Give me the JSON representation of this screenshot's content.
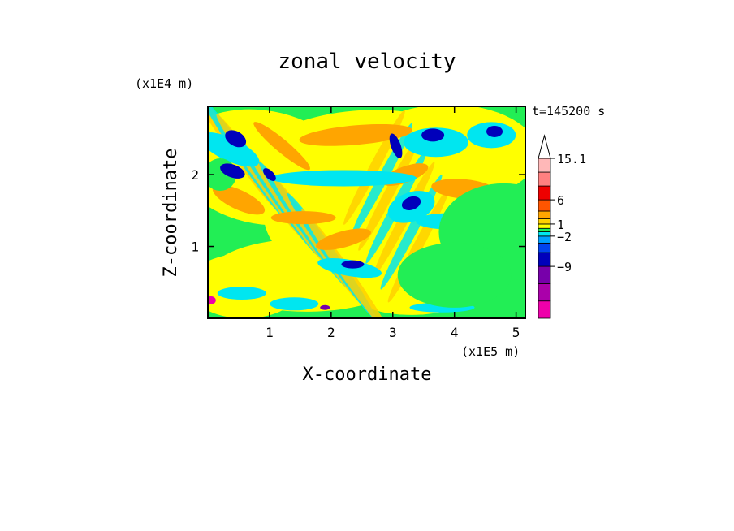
{
  "chart_data": {
    "type": "heatmap",
    "title": "zonal velocity",
    "xlabel": "X-coordinate",
    "ylabel": "Z-coordinate",
    "x_unit": "(x1E5 m)",
    "y_unit": "(x1E4 m)",
    "time_label": "t=145200 s",
    "xlim": [
      0,
      5.15
    ],
    "ylim": [
      0,
      2.95
    ],
    "x_ticks": [
      1,
      2,
      3,
      4,
      5
    ],
    "y_ticks": [
      1,
      2
    ],
    "colorbar": {
      "levels": [
        -15,
        -12,
        -9,
        -6,
        -3,
        -2,
        -1,
        0,
        1,
        2,
        3,
        6,
        9,
        12,
        15.1
      ],
      "labels": [
        {
          "value": 15.1,
          "text": "15.1"
        },
        {
          "value": 6,
          "text": "6"
        },
        {
          "value": 1,
          "text": "1"
        },
        {
          "value": -2,
          "text": "−2"
        },
        {
          "value": -9,
          "text": "−9"
        }
      ],
      "colors": [
        "#ee00aa",
        "#aa00aa",
        "#7700aa",
        "#0000bb",
        "#0044ee",
        "#00a0ff",
        "#00e6f0",
        "#22ee55",
        "#ffff00",
        "#ffd000",
        "#ffa500",
        "#ff5500",
        "#ee0000",
        "#ff8080",
        "#ffb8b8"
      ],
      "extend_top": true
    },
    "field": {
      "description_bands": [
        {
          "x": 0.45,
          "z": 2.55,
          "value": -6
        },
        {
          "x": 0.45,
          "z": 2.05,
          "value": -6
        },
        {
          "x": 3.65,
          "z": 2.55,
          "value": -6
        },
        {
          "x": 4.65,
          "z": 2.6,
          "value": -6
        },
        {
          "x": 4.2,
          "z": 1.8,
          "value": 4
        }
      ]
    }
  }
}
